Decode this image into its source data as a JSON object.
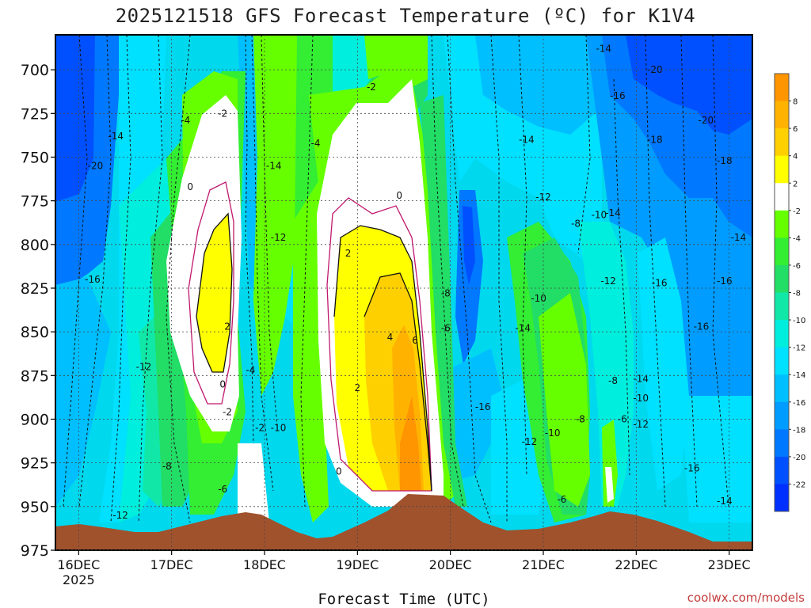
{
  "chart_data": {
    "type": "contour",
    "title": "2025121518 GFS Forecast Temperature (ºC) for K1V4",
    "xlabel": "Forecast Time (UTC)",
    "credit": "coolwx.com/models",
    "x_ticks": [
      "16DEC",
      "17DEC",
      "18DEC",
      "19DEC",
      "20DEC",
      "21DEC",
      "22DEC",
      "23DEC"
    ],
    "x_tick_year": "2025",
    "y_ticks": [
      700,
      725,
      750,
      775,
      800,
      825,
      850,
      875,
      900,
      925,
      950,
      975
    ],
    "ylim": [
      975,
      680
    ],
    "colorbar_labels": [
      "8",
      "6",
      "4",
      "2",
      "-2",
      "-4",
      "-6",
      "-8",
      "-10",
      "-12",
      "-14",
      "-16",
      "-18",
      "-20",
      "-22"
    ],
    "colorbar_colors": [
      "#ff9500",
      "#ffb300",
      "#ffd000",
      "#ffff00",
      "#ffffff",
      "#66ff00",
      "#33ee33",
      "#22dd66",
      "#11e8a8",
      "#00eedd",
      "#00e0ff",
      "#00bfff",
      "#009cff",
      "#0078ff",
      "#0050ff",
      "#0030ff"
    ],
    "contour_labels": [
      {
        "t": "-14",
        "x": 16.4,
        "p": 738
      },
      {
        "t": "-20",
        "x": 16.18,
        "p": 755
      },
      {
        "t": "-16",
        "x": 16.15,
        "p": 820
      },
      {
        "t": "-12",
        "x": 16.7,
        "p": 870
      },
      {
        "t": "-12",
        "x": 16.45,
        "p": 955
      },
      {
        "t": "-8",
        "x": 16.95,
        "p": 927
      },
      {
        "t": "-6",
        "x": 17.55,
        "p": 940
      },
      {
        "t": "-4",
        "x": 17.15,
        "p": 729
      },
      {
        "t": "-2",
        "x": 17.55,
        "p": 725
      },
      {
        "t": "0",
        "x": 17.2,
        "p": 767
      },
      {
        "t": "2",
        "x": 17.6,
        "p": 847
      },
      {
        "t": "0",
        "x": 17.55,
        "p": 880
      },
      {
        "t": "-2",
        "x": 17.6,
        "p": 896
      },
      {
        "t": "-4",
        "x": 17.85,
        "p": 872
      },
      {
        "t": "-14",
        "x": 18.1,
        "p": 755
      },
      {
        "t": "-12",
        "x": 18.15,
        "p": 796
      },
      {
        "t": "-2",
        "x": 17.95,
        "p": 905
      },
      {
        "t": "-10",
        "x": 18.15,
        "p": 905
      },
      {
        "t": "-4",
        "x": 18.55,
        "p": 742
      },
      {
        "t": "-2",
        "x": 19.15,
        "p": 710
      },
      {
        "t": "0",
        "x": 19.45,
        "p": 772
      },
      {
        "t": "2",
        "x": 18.9,
        "p": 805
      },
      {
        "t": "4",
        "x": 19.35,
        "p": 853
      },
      {
        "t": "6",
        "x": 19.62,
        "p": 855
      },
      {
        "t": "2",
        "x": 19.0,
        "p": 882
      },
      {
        "t": "0",
        "x": 18.8,
        "p": 930
      },
      {
        "t": "-8",
        "x": 19.95,
        "p": 828
      },
      {
        "t": "-6",
        "x": 19.95,
        "p": 848
      },
      {
        "t": "-16",
        "x": 20.35,
        "p": 893
      },
      {
        "t": "-14",
        "x": 20.82,
        "p": 740
      },
      {
        "t": "-12",
        "x": 21.0,
        "p": 773
      },
      {
        "t": "-10",
        "x": 20.95,
        "p": 831
      },
      {
        "t": "-14",
        "x": 20.78,
        "p": 848
      },
      {
        "t": "-12",
        "x": 20.85,
        "p": 913
      },
      {
        "t": "-10",
        "x": 21.1,
        "p": 908
      },
      {
        "t": "-8",
        "x": 21.35,
        "p": 788
      },
      {
        "t": "-10",
        "x": 21.6,
        "p": 783
      },
      {
        "t": "-14",
        "x": 21.75,
        "p": 782
      },
      {
        "t": "-12",
        "x": 21.7,
        "p": 821
      },
      {
        "t": "-8",
        "x": 21.4,
        "p": 900
      },
      {
        "t": "-6",
        "x": 21.2,
        "p": 946
      },
      {
        "t": "-8",
        "x": 21.75,
        "p": 878
      },
      {
        "t": "-6",
        "x": 21.85,
        "p": 900
      },
      {
        "t": "-10",
        "x": 22.05,
        "p": 888
      },
      {
        "t": "-12",
        "x": 22.05,
        "p": 903
      },
      {
        "t": "-14",
        "x": 22.05,
        "p": 877
      },
      {
        "t": "-16",
        "x": 22.25,
        "p": 822
      },
      {
        "t": "-16",
        "x": 22.7,
        "p": 847
      },
      {
        "t": "-14",
        "x": 21.65,
        "p": 688
      },
      {
        "t": "-16",
        "x": 21.8,
        "p": 715
      },
      {
        "t": "-20",
        "x": 22.2,
        "p": 700
      },
      {
        "t": "-18",
        "x": 22.2,
        "p": 740
      },
      {
        "t": "-20",
        "x": 22.75,
        "p": 729
      },
      {
        "t": "-18",
        "x": 22.95,
        "p": 752
      },
      {
        "t": "-14",
        "x": 23.1,
        "p": 796
      },
      {
        "t": "-16",
        "x": 22.95,
        "p": 821
      },
      {
        "t": "-16",
        "x": 22.6,
        "p": 928
      },
      {
        "t": "-14",
        "x": 22.95,
        "p": 947
      }
    ]
  }
}
